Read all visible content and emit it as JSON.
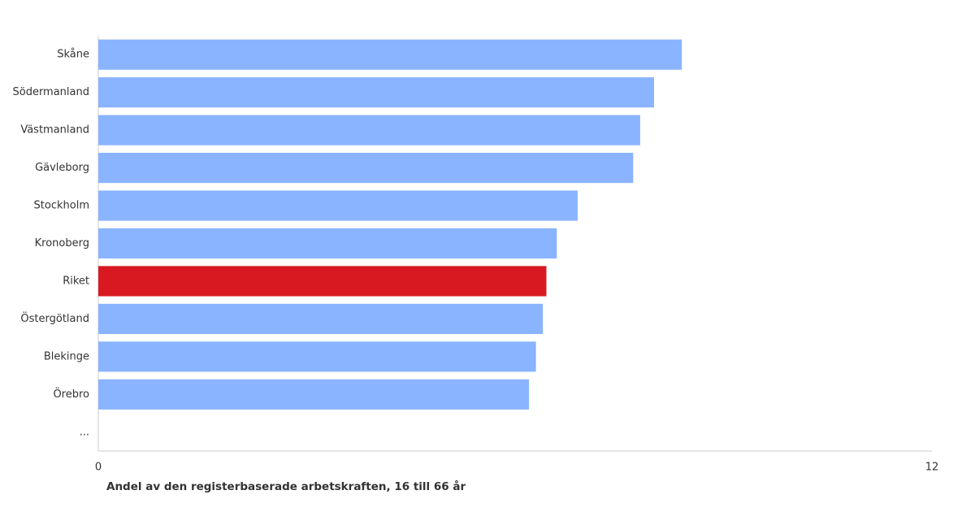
{
  "chart_data": {
    "type": "barh",
    "x_label": "Andel av den registerbaserade arbetskraften, 16 till 66 år",
    "categories": [
      "Skåne",
      "Södermanland",
      "Västmanland",
      "Gävleborg",
      "Stockholm",
      "Kronoberg",
      "Riket",
      "Östergötland",
      "Blekinge",
      "Örebro",
      "..."
    ],
    "values": [
      8.4,
      8.0,
      7.8,
      7.7,
      6.9,
      6.6,
      6.45,
      6.4,
      6.3,
      6.2,
      null
    ],
    "colors": [
      "#8ab4ff",
      "#8ab4ff",
      "#8ab4ff",
      "#8ab4ff",
      "#8ab4ff",
      "#8ab4ff",
      "#d81921",
      "#8ab4ff",
      "#8ab4ff",
      "#8ab4ff",
      "#8ab4ff"
    ],
    "xlim": [
      0,
      12
    ],
    "xticks": [
      0,
      12
    ]
  }
}
